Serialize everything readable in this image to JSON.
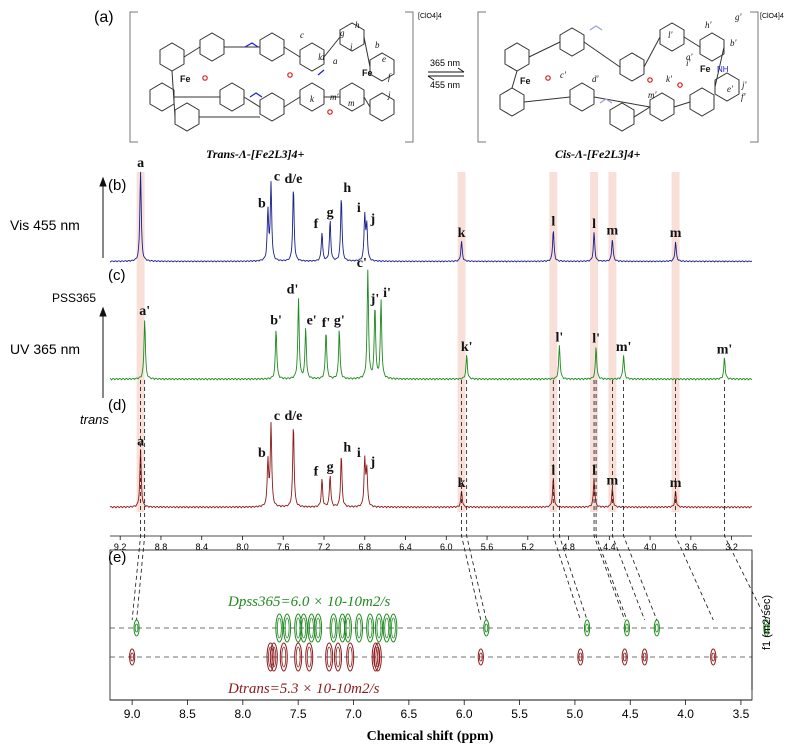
{
  "panels": {
    "a": "(a)",
    "b": "(b)",
    "c": "(c)",
    "d": "(d)",
    "e": "(e)"
  },
  "scheme": {
    "trans_name": "Trans-Λ-[Fe2L3]4+",
    "cis_name": "Cis-Λ-[Fe2L3]4+",
    "counterion": "[ClO4]4",
    "fwd": "365 nm",
    "rev": "455 nm",
    "trans_labels": [
      "a",
      "b",
      "c",
      "d",
      "e",
      "f",
      "g",
      "h",
      "i",
      "j",
      "k",
      "l",
      "m",
      "m'"
    ],
    "cis_labels": [
      "a'",
      "b'",
      "c'",
      "d'",
      "e'",
      "f'",
      "g'",
      "h'",
      "i'",
      "j'",
      "k'",
      "l'",
      "m'"
    ],
    "fe": "Fe",
    "nh": "NH"
  },
  "row_labels": {
    "vis": "Vis 455 nm",
    "pss": "PSS365",
    "uv": "UV 365 nm",
    "trans": "trans"
  },
  "chart_data": [
    {
      "type": "line",
      "title": "",
      "series": [
        {
          "name": "Vis 455 nm",
          "color": "#1a1f8c",
          "peaks": [
            {
              "x": 9.0,
              "h": 1.0,
              "label": "a"
            },
            {
              "x": 7.75,
              "h": 0.55,
              "label": "b"
            },
            {
              "x": 7.72,
              "h": 0.85,
              "label": "c"
            },
            {
              "x": 7.5,
              "h": 0.82,
              "label": "d/e"
            },
            {
              "x": 7.22,
              "h": 0.32,
              "label": "f"
            },
            {
              "x": 7.14,
              "h": 0.45,
              "label": "g"
            },
            {
              "x": 7.03,
              "h": 0.72,
              "label": "h"
            },
            {
              "x": 6.8,
              "h": 0.5,
              "label": "i"
            },
            {
              "x": 6.78,
              "h": 0.38,
              "label": "j"
            },
            {
              "x": 5.85,
              "h": 0.22,
              "label": "k"
            },
            {
              "x": 4.95,
              "h": 0.35,
              "label": "l"
            },
            {
              "x": 4.55,
              "h": 0.32,
              "label": "l"
            },
            {
              "x": 4.37,
              "h": 0.25,
              "label": "m"
            },
            {
              "x": 3.75,
              "h": 0.22,
              "label": "m"
            }
          ]
        },
        {
          "name": "UV 365 nm",
          "color": "#1f8a1f",
          "peaks": [
            {
              "x": 8.96,
              "h": 0.5,
              "label": "a'"
            },
            {
              "x": 7.67,
              "h": 0.42,
              "label": "b'"
            },
            {
              "x": 7.45,
              "h": 0.68,
              "label": "d'"
            },
            {
              "x": 7.38,
              "h": 0.42,
              "label": "e'"
            },
            {
              "x": 7.18,
              "h": 0.4,
              "label": "f'"
            },
            {
              "x": 7.05,
              "h": 0.42,
              "label": "g'"
            },
            {
              "x": 6.77,
              "h": 0.9,
              "label": "c'"
            },
            {
              "x": 6.7,
              "h": 0.6,
              "label": "j'"
            },
            {
              "x": 6.64,
              "h": 0.65,
              "label": "i'"
            },
            {
              "x": 5.8,
              "h": 0.2,
              "label": "k'"
            },
            {
              "x": 4.89,
              "h": 0.28,
              "label": "l'"
            },
            {
              "x": 4.53,
              "h": 0.27,
              "label": "l'"
            },
            {
              "x": 4.26,
              "h": 0.2,
              "label": "m'"
            },
            {
              "x": 3.27,
              "h": 0.18,
              "label": "m'"
            }
          ]
        },
        {
          "name": "trans",
          "color": "#8c1a1a",
          "peaks": [
            {
              "x": 9.0,
              "h": 0.5,
              "label": "a"
            },
            {
              "x": 7.75,
              "h": 0.4,
              "label": "b"
            },
            {
              "x": 7.72,
              "h": 0.72,
              "label": "c"
            },
            {
              "x": 7.5,
              "h": 0.72,
              "label": "d/e"
            },
            {
              "x": 7.22,
              "h": 0.24,
              "label": "f"
            },
            {
              "x": 7.14,
              "h": 0.28,
              "label": "g"
            },
            {
              "x": 7.03,
              "h": 0.45,
              "label": "h"
            },
            {
              "x": 6.8,
              "h": 0.4,
              "label": "i"
            },
            {
              "x": 6.78,
              "h": 0.32,
              "label": "j"
            },
            {
              "x": 5.85,
              "h": 0.14,
              "label": "k"
            },
            {
              "x": 4.95,
              "h": 0.25,
              "label": "l"
            },
            {
              "x": 4.55,
              "h": 0.25,
              "label": "l"
            },
            {
              "x": 4.37,
              "h": 0.16,
              "label": "m"
            },
            {
              "x": 3.75,
              "h": 0.14,
              "label": "m"
            }
          ]
        }
      ],
      "xlim": [
        9.3,
        3.0
      ],
      "xticks": [
        "9.2",
        "8.8",
        "8.4",
        "8.0",
        "7.6",
        "7.2",
        "6.8",
        "6.4",
        "6.0",
        "5.6",
        "5.2",
        "4.8",
        "4.4",
        "4.0",
        "3.6",
        "3.2"
      ],
      "highlight_x": [
        9.0,
        5.85,
        4.95,
        4.55,
        4.37,
        3.75
      ]
    },
    {
      "type": "scatter",
      "title": "",
      "xlabel": "Chemical shift (ppm)",
      "ylabel": "f1 (m2/sec)",
      "xlim": [
        9.2,
        3.4
      ],
      "xticks": [
        "9.0",
        "8.5",
        "8.0",
        "7.5",
        "7.0",
        "6.5",
        "6.0",
        "5.5",
        "5.0",
        "4.5",
        "4.0",
        "3.5"
      ],
      "series": [
        {
          "name": "pss365",
          "color": "#1f8a1f",
          "x": [
            8.96,
            7.67,
            7.6,
            7.5,
            7.45,
            7.38,
            7.32,
            7.18,
            7.1,
            7.05,
            6.95,
            6.85,
            6.77,
            6.7,
            6.64,
            5.8,
            4.89,
            4.53,
            4.26,
            3.27
          ]
        },
        {
          "name": "trans",
          "color": "#8c1a1a",
          "x": [
            9.0,
            7.75,
            7.72,
            7.63,
            7.5,
            7.4,
            7.22,
            7.14,
            7.03,
            6.8,
            6.78,
            5.85,
            4.95,
            4.55,
            4.37,
            3.75
          ]
        }
      ],
      "annotations": {
        "pss_label": "Dpss365=6.0 × 10-10m2/s",
        "trans_label": "Dtrans=5.3 × 10-10m2/s"
      }
    }
  ]
}
